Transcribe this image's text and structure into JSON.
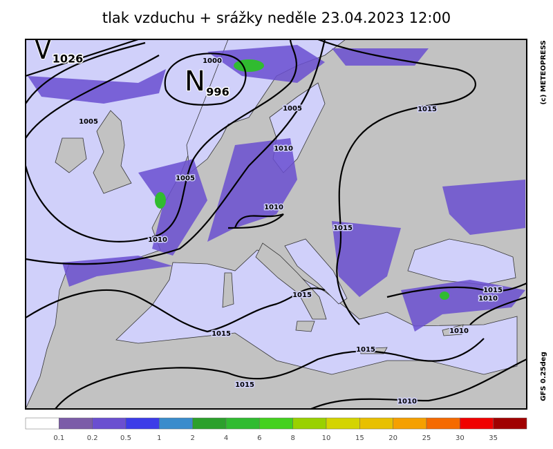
{
  "title": "tlak vzduchu + srážky  neděle 23.04.2023 12:00",
  "credit": "(c) METEOPRESS",
  "model": "GFS 0.25deg",
  "pressure_centers": [
    {
      "letter": "V",
      "value": "1026"
    },
    {
      "letter": "N",
      "value": "996"
    }
  ],
  "isobar_labels": [
    "1000",
    "1005",
    "1005",
    "1015",
    "1010",
    "1005",
    "1010",
    "1015",
    "1010",
    "1015",
    "1015",
    "1010",
    "1015",
    "1010",
    "1015",
    "1015",
    "1010"
  ],
  "colorbar": {
    "colors": [
      "#ffffff",
      "#7b5ca8",
      "#6a4fd0",
      "#3c3ce8",
      "#3a8ccc",
      "#2ca02c",
      "#30bb30",
      "#44d11e",
      "#99d100",
      "#d4d400",
      "#e8c000",
      "#f5a000",
      "#f56a00",
      "#f00000",
      "#a00000"
    ],
    "labels": [
      "0.1",
      "0.2",
      "0.5",
      "1",
      "2",
      "4",
      "6",
      "8",
      "10",
      "15",
      "20",
      "25",
      "30",
      "35"
    ]
  }
}
